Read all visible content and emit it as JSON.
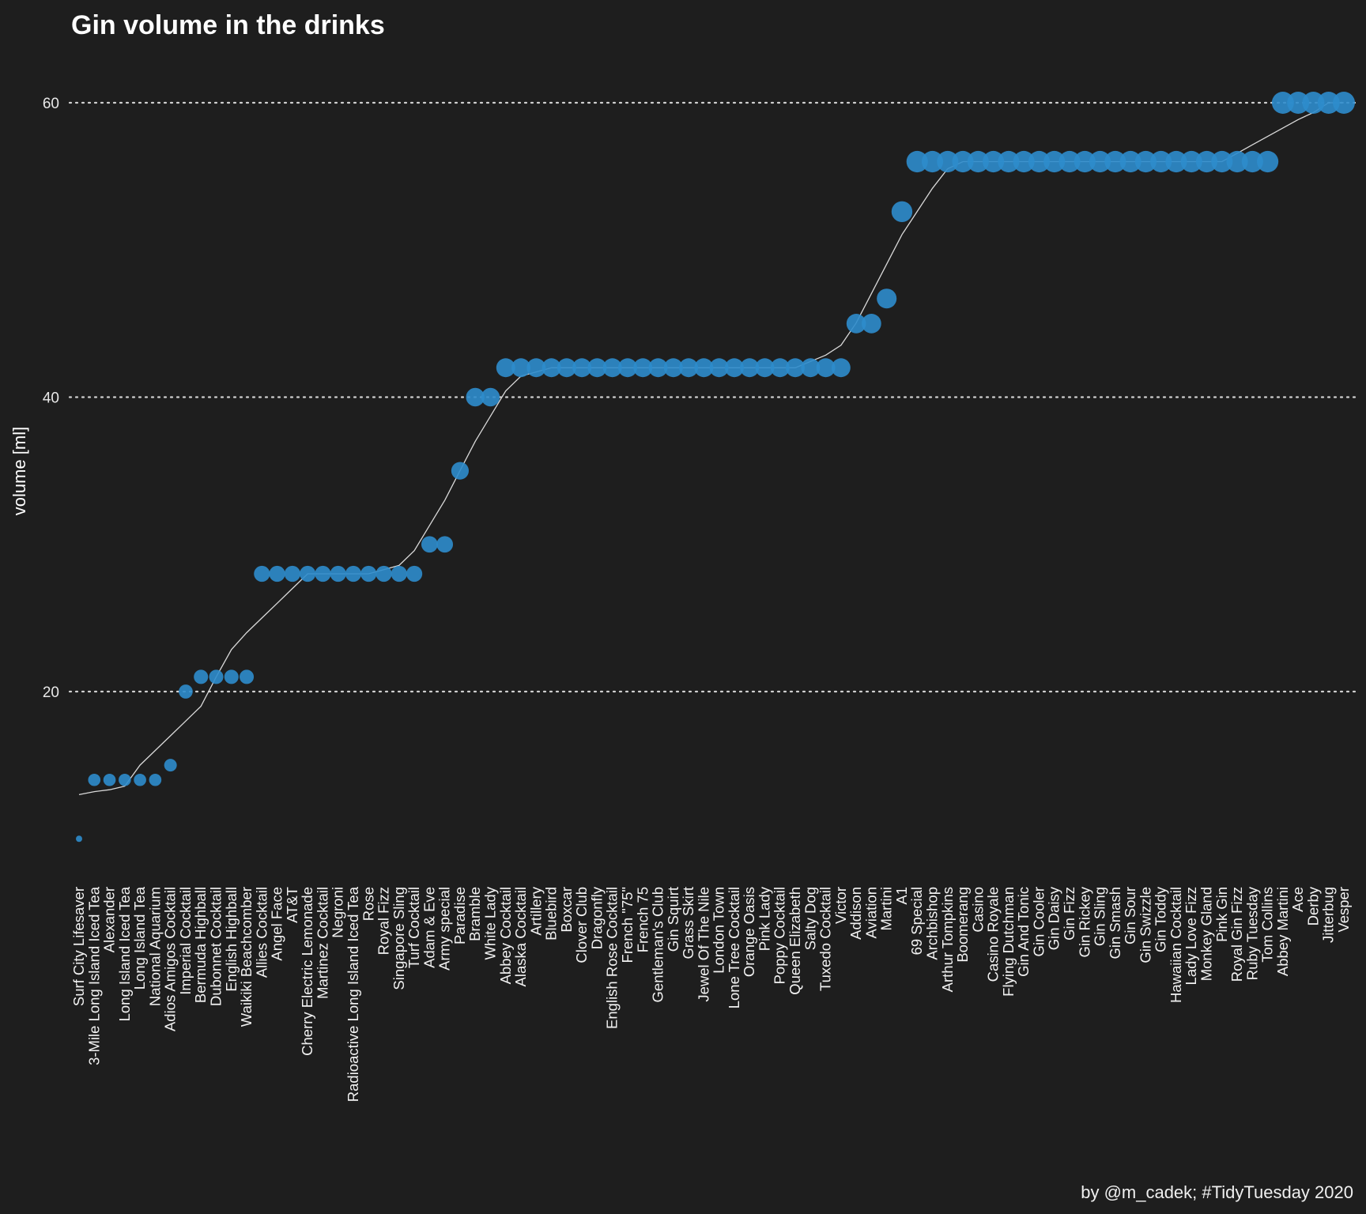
{
  "chart_data": {
    "type": "scatter",
    "title": "Gin volume in the drinks",
    "xlabel": "",
    "ylabel": "volume [ml]",
    "caption": "by @m_cadek; #TidyTuesday 2020",
    "y_ticks": [
      20,
      40,
      60
    ],
    "ylim": [
      8.5,
      61.5
    ],
    "grid": "horizontal dotted at major ticks",
    "point_color": "#2e8ccc",
    "line_color": "#d9d9d9",
    "background": "#1e1e1e",
    "categories": [
      "Surf City Lifesaver",
      "3-Mile Long Island Iced Tea",
      "Alexander",
      "Long Island Iced Tea",
      "Long Island Tea",
      "National Aquarium",
      "Adios Amigos Cocktail",
      "Imperial Cocktail",
      "Bermuda Highball",
      "Dubonnet Cocktail",
      "English Highball",
      "Waikiki Beachcomber",
      "Allies Cocktail",
      "Angel Face",
      "AT&T",
      "Cherry Electric Lemonade",
      "Martinez Cocktail",
      "Negroni",
      "Radioactive Long Island Iced Tea",
      "Rose",
      "Royal Fizz",
      "Singapore Sling",
      "Turf Cocktail",
      "Adam & Eve",
      "Army special",
      "Paradise",
      "Bramble",
      "White Lady",
      "Abbey Cocktail",
      "Alaska Cocktail",
      "Artillery",
      "Bluebird",
      "Boxcar",
      "Clover Club",
      "Dragonfly",
      "English Rose Cocktail",
      "French \"75\"",
      "French 75",
      "Gentleman's Club",
      "Gin Squirt",
      "Grass Skirt",
      "Jewel Of The Nile",
      "London Town",
      "Lone Tree Cocktail",
      "Orange Oasis",
      "Pink Lady",
      "Poppy Cocktail",
      "Queen Elizabeth",
      "Salty Dog",
      "Tuxedo Cocktail",
      "Victor",
      "Addison",
      "Aviation",
      "Martini",
      "A1",
      "69 Special",
      "Archbishop",
      "Arthur Tompkins",
      "Boomerang",
      "Casino",
      "Casino Royale",
      "Flying Dutchman",
      "Gin And Tonic",
      "Gin Cooler",
      "Gin Daisy",
      "Gin Fizz",
      "Gin Rickey",
      "Gin Sling",
      "Gin Smash",
      "Gin Sour",
      "Gin Swizzle",
      "Gin Toddy",
      "Hawaiian Cocktail",
      "Lady Love Fizz",
      "Monkey Gland",
      "Pink Gin",
      "Royal Gin Fizz",
      "Ruby Tuesday",
      "Tom Collins",
      "Abbey Martini",
      "Ace",
      "Derby",
      "Jitterbug",
      "Vesper"
    ],
    "values": [
      10,
      14,
      14,
      14,
      14,
      14,
      15,
      20,
      21,
      21,
      21,
      21,
      28,
      28,
      28,
      28,
      28,
      28,
      28,
      28,
      28,
      28,
      28,
      30,
      30,
      35,
      40,
      40,
      42,
      42,
      42,
      42,
      42,
      42,
      42,
      42,
      42,
      42,
      42,
      42,
      42,
      42,
      42,
      42,
      42,
      42,
      42,
      42,
      42,
      42,
      42,
      45,
      45,
      46.7,
      52.6,
      56,
      56,
      56,
      56,
      56,
      56,
      56,
      56,
      56,
      56,
      56,
      56,
      56,
      56,
      56,
      56,
      56,
      56,
      56,
      56,
      56,
      56,
      56,
      56,
      60,
      60,
      60,
      60,
      60
    ]
  }
}
